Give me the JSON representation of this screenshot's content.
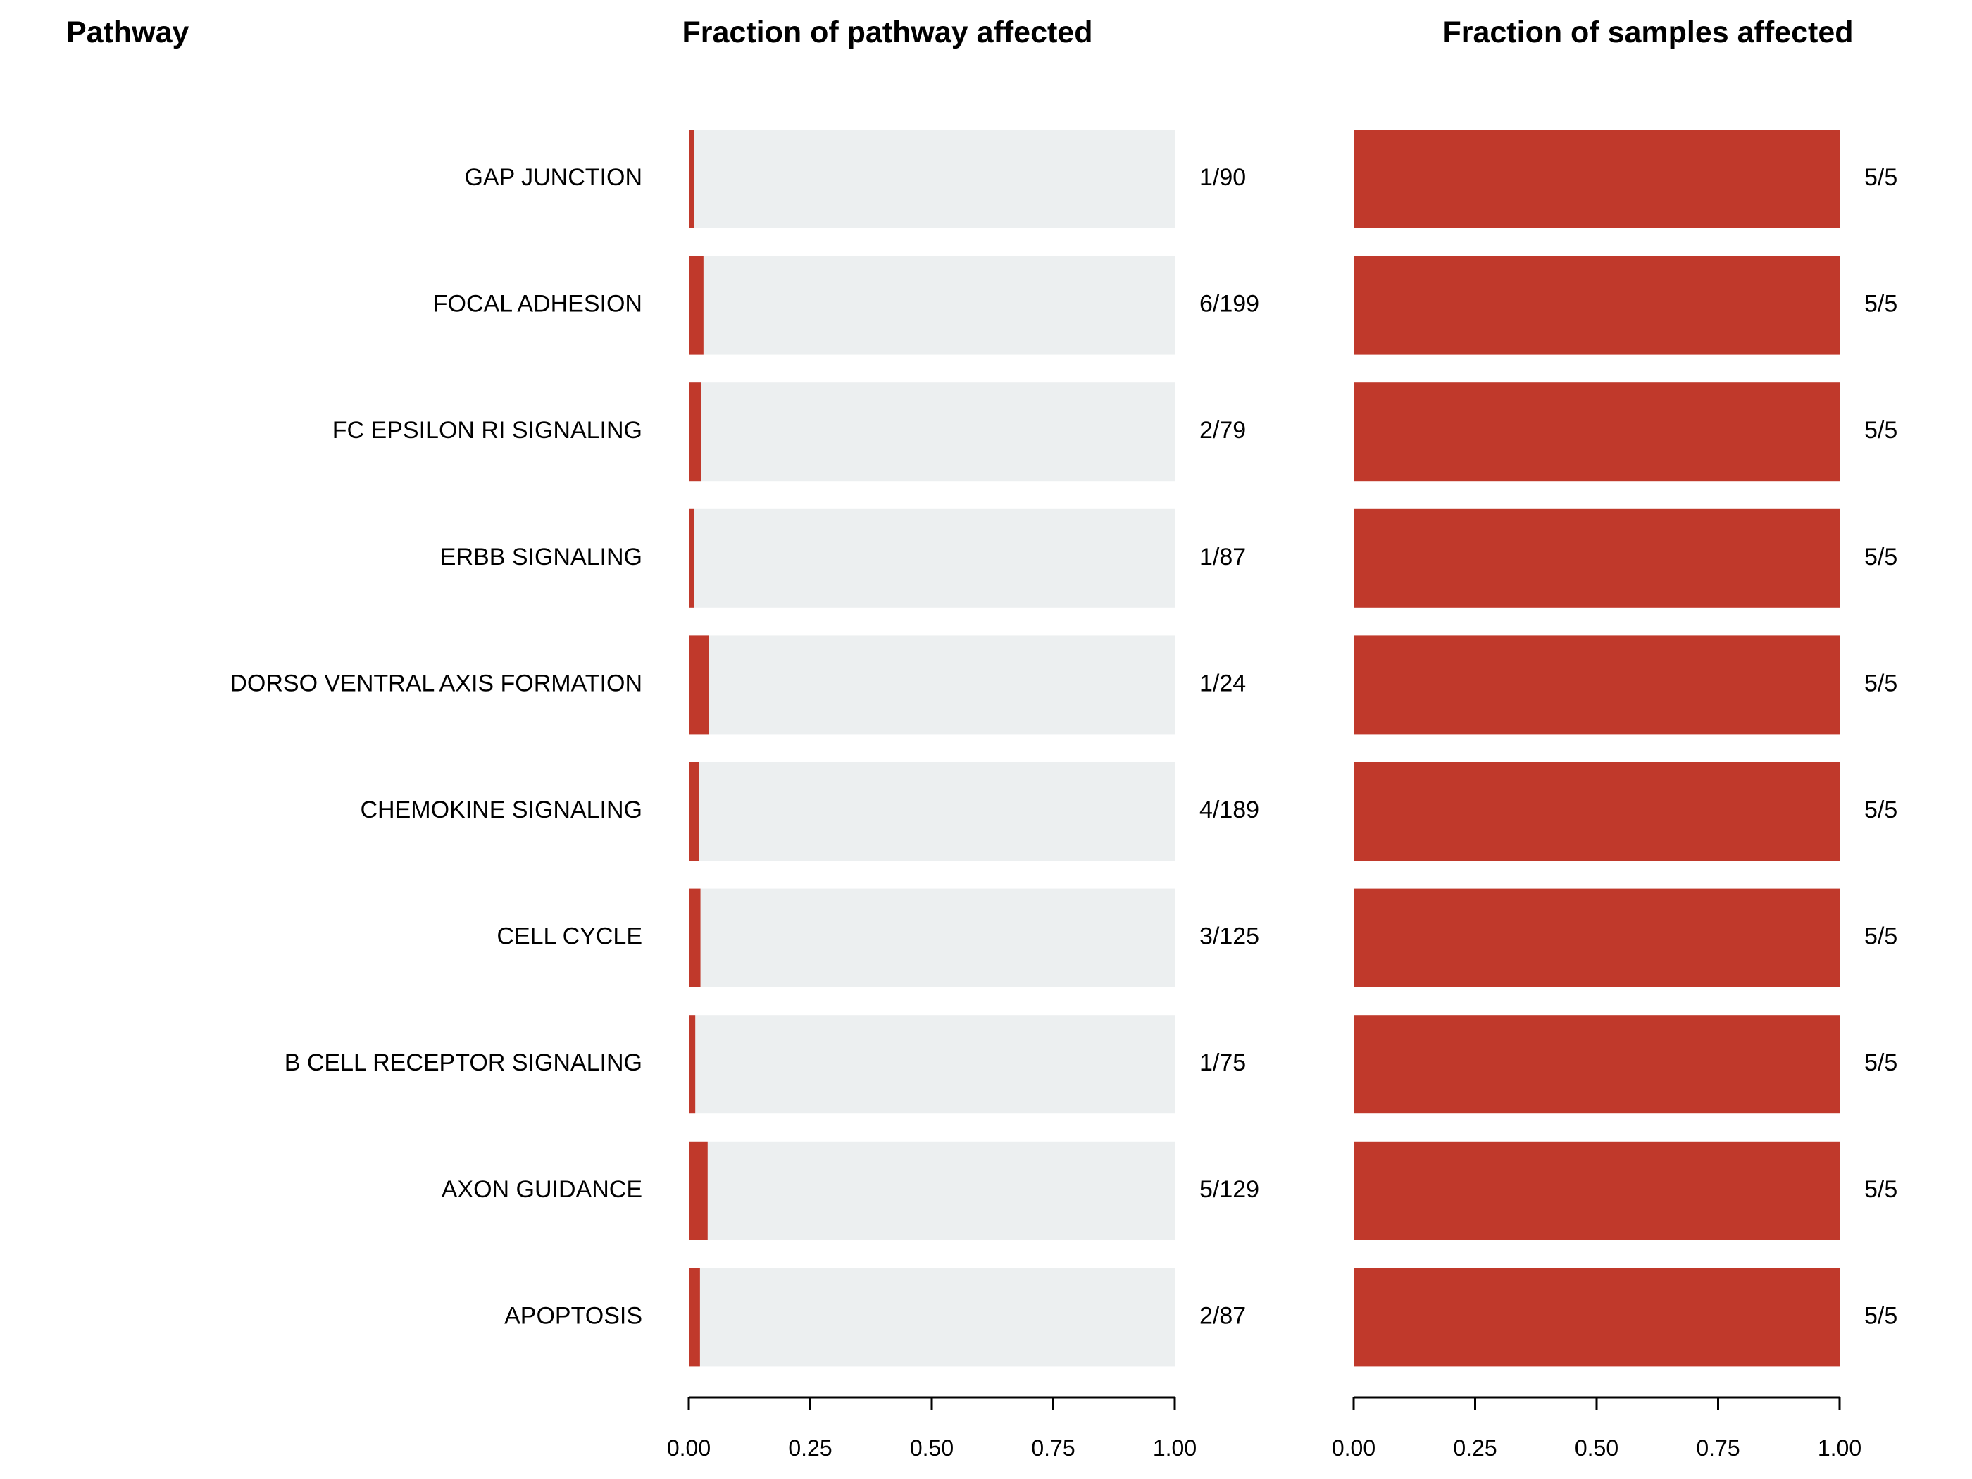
{
  "titles": {
    "pathway": "Pathway",
    "pathway_fraction": "Fraction of pathway affected",
    "sample_fraction": "Fraction of samples affected"
  },
  "colors": {
    "affected": "#c0392b",
    "background_bar": "#eceff0"
  },
  "chart_data": [
    {
      "type": "bar",
      "orientation": "horizontal",
      "title": "Fraction of pathway affected",
      "categories": [
        "GAP JUNCTION",
        "FOCAL ADHESION",
        "FC EPSILON RI SIGNALING",
        "ERBB SIGNALING",
        "DORSO VENTRAL AXIS FORMATION",
        "CHEMOKINE SIGNALING",
        "CELL CYCLE",
        "B CELL RECEPTOR SIGNALING",
        "AXON GUIDANCE",
        "APOPTOSIS"
      ],
      "values": [
        0.0111,
        0.0302,
        0.0253,
        0.0115,
        0.0417,
        0.0212,
        0.024,
        0.0133,
        0.0388,
        0.023
      ],
      "labels": [
        "1/90",
        "6/199",
        "2/79",
        "1/87",
        "1/24",
        "4/189",
        "3/125",
        "1/75",
        "5/129",
        "2/87"
      ],
      "xlim": [
        0,
        1
      ],
      "xticks": [
        "0.00",
        "0.25",
        "0.50",
        "0.75",
        "1.00"
      ],
      "xlabel": "",
      "ylabel": "",
      "grid": false,
      "legend": "none"
    },
    {
      "type": "bar",
      "orientation": "horizontal",
      "title": "Fraction of samples affected",
      "categories": [
        "GAP JUNCTION",
        "FOCAL ADHESION",
        "FC EPSILON RI SIGNALING",
        "ERBB SIGNALING",
        "DORSO VENTRAL AXIS FORMATION",
        "CHEMOKINE SIGNALING",
        "CELL CYCLE",
        "B CELL RECEPTOR SIGNALING",
        "AXON GUIDANCE",
        "APOPTOSIS"
      ],
      "values": [
        1,
        1,
        1,
        1,
        1,
        1,
        1,
        1,
        1,
        1
      ],
      "labels": [
        "5/5",
        "5/5",
        "5/5",
        "5/5",
        "5/5",
        "5/5",
        "5/5",
        "5/5",
        "5/5",
        "5/5"
      ],
      "xlim": [
        0,
        1
      ],
      "xticks": [
        "0.00",
        "0.25",
        "0.50",
        "0.75",
        "1.00"
      ],
      "xlabel": "",
      "ylabel": "",
      "grid": false,
      "legend": "none"
    }
  ]
}
